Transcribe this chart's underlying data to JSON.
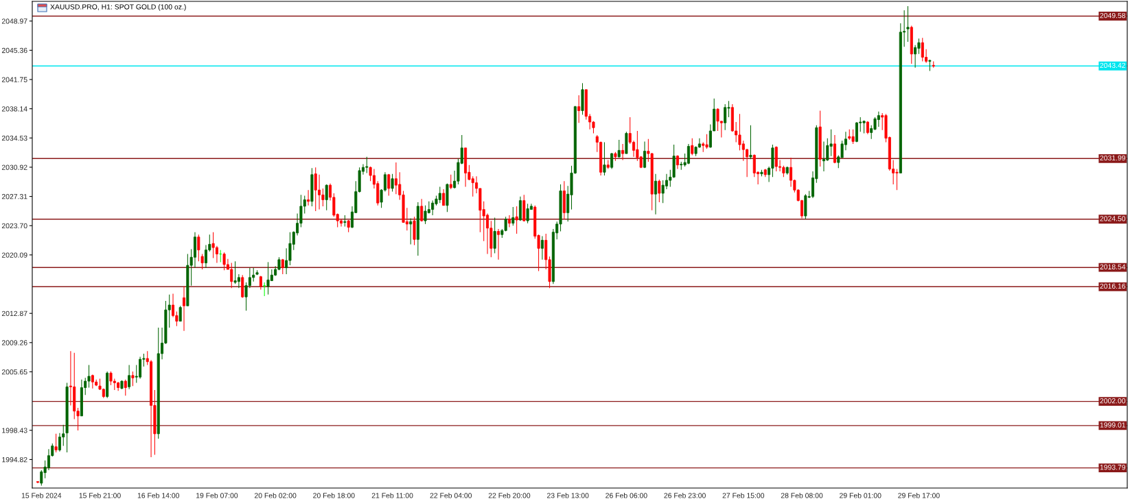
{
  "chart_data": {
    "type": "candlestick",
    "title": "XAUUSD.PRO, H1: SPOT GOLD (100 oz.)",
    "categories": [
      null,
      "15 Feb 2024",
      null,
      null,
      null,
      null,
      null,
      null,
      null,
      null,
      null,
      null,
      null,
      null,
      null,
      null,
      null,
      "15 Feb 21:00",
      null,
      null,
      null,
      null,
      null,
      null,
      null,
      null,
      null,
      null,
      null,
      null,
      null,
      null,
      null,
      "16 Feb 14:00",
      null,
      null,
      null,
      null,
      null,
      null,
      null,
      null,
      null,
      null,
      null,
      null,
      null,
      null,
      null,
      "19 Feb 07:00",
      null,
      null,
      null,
      null,
      null,
      null,
      null,
      null,
      null,
      null,
      null,
      null,
      null,
      null,
      null,
      "20 Feb 02:00",
      null,
      null,
      null,
      null,
      null,
      null,
      null,
      null,
      null,
      null,
      null,
      null,
      null,
      null,
      null,
      "20 Feb 18:00",
      null,
      null,
      null,
      null,
      null,
      null,
      null,
      null,
      null,
      null,
      null,
      null,
      null,
      null,
      null,
      "21 Feb 11:00",
      null,
      null,
      null,
      null,
      null,
      null,
      null,
      null,
      null,
      null,
      null,
      null,
      null,
      null,
      null,
      "22 Feb 04:00",
      null,
      null,
      null,
      null,
      null,
      null,
      null,
      null,
      null,
      null,
      null,
      null,
      null,
      null,
      null,
      "22 Feb 20:00",
      null,
      null,
      null,
      null,
      null,
      null,
      null,
      null,
      null,
      null,
      null,
      null,
      null,
      null,
      null,
      "23 Feb 13:00",
      null,
      null,
      null,
      null,
      null,
      null,
      null,
      null,
      null,
      null,
      null,
      null,
      null,
      null,
      null,
      "26 Feb 06:00",
      null,
      null,
      null,
      null,
      null,
      null,
      null,
      null,
      null,
      null,
      null,
      null,
      null,
      null,
      null,
      "26 Feb 23:00",
      null,
      null,
      null,
      null,
      null,
      null,
      null,
      null,
      null,
      null,
      null,
      null,
      null,
      null,
      null,
      "27 Feb 15:00",
      null,
      null,
      null,
      null,
      null,
      null,
      null,
      null,
      null,
      null,
      null,
      null,
      null,
      null,
      null,
      "28 Feb 08:00",
      null,
      null,
      null,
      null,
      null,
      null,
      null,
      null,
      null,
      null,
      null,
      null,
      null,
      null,
      null,
      "29 Feb 01:00",
      null,
      null,
      null,
      null,
      null,
      null,
      null,
      null,
      null,
      null,
      null,
      null,
      null,
      null,
      null,
      "29 Feb 17:00",
      null,
      null,
      null,
      null
    ],
    "ohlc": [
      [
        1992.1,
        1992.1,
        1991.9,
        1992.0
      ],
      [
        1991.9,
        1993.5,
        1991.6,
        1993.3
      ],
      [
        1993.2,
        1994.7,
        1992.5,
        1993.9
      ],
      [
        1993.8,
        1996.1,
        1993.5,
        1995.3
      ],
      [
        1995.3,
        1996.8,
        1995.2,
        1996.5
      ],
      [
        1996.4,
        1998.0,
        1995.7,
        1996.0
      ],
      [
        1996.0,
        1998.1,
        1995.8,
        1997.6
      ],
      [
        1997.6,
        1999.1,
        1996.5,
        1998.0
      ],
      [
        1998.1,
        2004.3,
        1995.7,
        2003.8
      ],
      [
        2003.9,
        2008.2,
        2001.5,
        2003.8
      ],
      [
        2003.8,
        2008.0,
        1999.8,
        2000.8
      ],
      [
        2000.8,
        2001.2,
        1998.4,
        2000.2
      ],
      [
        2000.2,
        2004.7,
        2000.2,
        2003.7
      ],
      [
        2003.7,
        2004.9,
        2002.8,
        2004.5
      ],
      [
        2004.5,
        2006.5,
        2003.7,
        2005.1
      ],
      [
        2005.2,
        2005.3,
        2003.6,
        2004.4
      ],
      [
        2004.4,
        2004.7,
        2003.9,
        2004.0
      ],
      [
        2003.9,
        2004.8,
        2003.4,
        2003.5
      ],
      [
        2003.5,
        2003.6,
        2002.4,
        2002.6
      ],
      [
        2002.6,
        2005.7,
        2002.4,
        2005.5
      ],
      [
        2005.5,
        2005.7,
        2004.0,
        2004.5
      ],
      [
        2004.5,
        2004.8,
        2003.4,
        2004.3
      ],
      [
        2004.3,
        2004.4,
        2003.3,
        2003.7
      ],
      [
        2003.6,
        2004.6,
        2003.5,
        2004.5
      ],
      [
        2004.5,
        2004.7,
        2002.7,
        2003.7
      ],
      [
        2003.8,
        2006.5,
        2003.5,
        2005.2
      ],
      [
        2005.2,
        2005.7,
        2003.9,
        2004.9
      ],
      [
        2005.0,
        2006.5,
        2004.3,
        2005.1
      ],
      [
        2005.0,
        2007.5,
        2004.8,
        2007.2
      ],
      [
        2007.2,
        2007.9,
        2006.3,
        2007.3
      ],
      [
        2007.3,
        2008.2,
        2006.5,
        2006.9
      ],
      [
        2006.9,
        2007.1,
        1995.1,
        2001.5
      ],
      [
        2001.5,
        2003.4,
        1995.4,
        1998.0
      ],
      [
        1998.0,
        2011.1,
        1997.4,
        2007.9
      ],
      [
        2007.9,
        2011.1,
        2007.2,
        2009.2
      ],
      [
        2009.2,
        2014.4,
        2009.1,
        2013.3
      ],
      [
        2013.3,
        2015.2,
        2011.1,
        2013.9
      ],
      [
        2013.9,
        2015.3,
        2012.4,
        2012.6
      ],
      [
        2012.6,
        2013.1,
        2011.3,
        2011.9
      ],
      [
        2011.9,
        2013.8,
        2011.9,
        2013.6
      ],
      [
        2014.8,
        2016.2,
        2010.7,
        2013.8
      ],
      [
        2013.8,
        2020.2,
        2013.8,
        2018.8
      ],
      [
        2018.8,
        2020.8,
        2016.3,
        2019.8
      ],
      [
        2019.8,
        2022.9,
        2018.5,
        2022.3
      ],
      [
        2022.3,
        2022.6,
        2019.3,
        2020.7
      ],
      [
        2019.9,
        2020.2,
        2018.3,
        2019.1
      ],
      [
        2019.1,
        2021.3,
        2018.5,
        2020.7
      ],
      [
        2020.7,
        2022.6,
        2020.5,
        2021.4
      ],
      [
        2021.5,
        2022.9,
        2019.7,
        2021.0
      ],
      [
        2021.0,
        2021.2,
        2019.1,
        2020.2
      ],
      [
        2020.2,
        2020.7,
        2019.2,
        2020.2
      ],
      [
        2020.2,
        2020.4,
        2018.2,
        2018.9
      ],
      [
        2018.9,
        2019.6,
        2018.3,
        2018.3
      ],
      [
        2018.3,
        2019.1,
        2016.0,
        2016.8
      ],
      [
        2016.7,
        2019.3,
        2016.5,
        2016.9
      ],
      [
        2016.8,
        2017.7,
        2016.0,
        2017.3
      ],
      [
        2017.3,
        2017.6,
        2014.8,
        2014.9
      ],
      [
        2014.9,
        2016.7,
        2013.2,
        2016.3
      ],
      [
        2016.3,
        2018.5,
        2016.0,
        2017.3
      ],
      [
        2017.3,
        2018.5,
        2016.8,
        2017.6
      ],
      [
        2017.7,
        2018.2,
        2017.6,
        2017.9
      ],
      [
        2017.4,
        2017.5,
        2015.8,
        2016.2
      ],
      [
        2016.3,
        2016.7,
        2015.0,
        2016.3
      ],
      [
        2016.2,
        2019.2,
        2015.2,
        2017.0
      ],
      [
        2016.9,
        2018.3,
        2016.9,
        2017.6
      ],
      [
        2017.6,
        2018.7,
        2017.5,
        2018.3
      ],
      [
        2018.3,
        2019.8,
        2018.2,
        2019.5
      ],
      [
        2019.5,
        2019.6,
        2017.7,
        2018.5
      ],
      [
        2018.5,
        2020.9,
        2017.7,
        2019.4
      ],
      [
        2019.4,
        2022.9,
        2018.8,
        2021.5
      ],
      [
        2021.4,
        2023.0,
        2020.7,
        2022.9
      ],
      [
        2022.8,
        2025.2,
        2022.5,
        2024.0
      ],
      [
        2024.0,
        2027.5,
        2023.5,
        2026.1
      ],
      [
        2026.1,
        2027.4,
        2025.2,
        2026.9
      ],
      [
        2026.9,
        2028.1,
        2026.2,
        2026.7
      ],
      [
        2026.7,
        2030.8,
        2026.1,
        2030.0
      ],
      [
        2030.1,
        2030.9,
        2025.5,
        2028.1
      ],
      [
        2028.1,
        2030.0,
        2025.7,
        2027.5
      ],
      [
        2027.5,
        2028.3,
        2026.1,
        2026.9
      ],
      [
        2026.9,
        2028.8,
        2025.6,
        2028.7
      ],
      [
        2028.7,
        2028.9,
        2026.8,
        2027.2
      ],
      [
        2027.2,
        2027.7,
        2024.8,
        2025.0
      ],
      [
        2025.1,
        2025.2,
        2023.5,
        2024.3
      ],
      [
        2024.3,
        2024.5,
        2023.6,
        2024.0
      ],
      [
        2024.1,
        2025.0,
        2023.6,
        2024.2
      ],
      [
        2024.3,
        2024.4,
        2022.9,
        2023.5
      ],
      [
        2023.5,
        2026.1,
        2023.4,
        2025.4
      ],
      [
        2025.3,
        2029.2,
        2025.3,
        2027.9
      ],
      [
        2027.9,
        2030.9,
        2027.8,
        2030.5
      ],
      [
        2030.4,
        2031.3,
        2030.0,
        2030.9
      ],
      [
        2030.9,
        2032.2,
        2030.2,
        2031.0
      ],
      [
        2030.9,
        2031.0,
        2029.2,
        2029.9
      ],
      [
        2029.9,
        2030.7,
        2028.3,
        2028.8
      ],
      [
        2028.9,
        2029.2,
        2026.2,
        2026.5
      ],
      [
        2026.6,
        2028.2,
        2025.9,
        2028.1
      ],
      [
        2028.1,
        2030.3,
        2027.9,
        2030.0
      ],
      [
        2030.0,
        2030.1,
        2027.4,
        2028.3
      ],
      [
        2028.3,
        2030.1,
        2027.9,
        2029.5
      ],
      [
        2029.5,
        2031.5,
        2027.6,
        2028.7
      ],
      [
        2028.8,
        2030.3,
        2026.9,
        2027.5
      ],
      [
        2027.5,
        2028.0,
        2024.1,
        2024.1
      ],
      [
        2024.2,
        2025.9,
        2023.1,
        2023.9
      ],
      [
        2023.9,
        2024.6,
        2021.4,
        2024.2
      ],
      [
        2024.3,
        2024.8,
        2021.3,
        2022.0
      ],
      [
        2022.0,
        2026.6,
        2020.0,
        2026.1
      ],
      [
        2026.1,
        2027.0,
        2024.2,
        2024.3
      ],
      [
        2024.3,
        2026.2,
        2023.9,
        2025.5
      ],
      [
        2025.3,
        2026.7,
        2025.2,
        2025.7
      ],
      [
        2025.7,
        2026.8,
        2025.0,
        2026.5
      ],
      [
        2026.4,
        2027.4,
        2026.2,
        2027.0
      ],
      [
        2026.9,
        2028.5,
        2026.5,
        2027.7
      ],
      [
        2027.7,
        2028.2,
        2026.2,
        2026.2
      ],
      [
        2026.2,
        2028.9,
        2025.4,
        2028.8
      ],
      [
        2028.8,
        2030.0,
        2028.2,
        2028.4
      ],
      [
        2028.4,
        2030.5,
        2028.3,
        2029.2
      ],
      [
        2029.2,
        2032.0,
        2028.8,
        2031.5
      ],
      [
        2031.4,
        2034.9,
        2031.3,
        2033.3
      ],
      [
        2033.3,
        2033.3,
        2028.5,
        2030.2
      ],
      [
        2030.3,
        2031.2,
        2029.3,
        2029.4
      ],
      [
        2029.5,
        2029.8,
        2027.3,
        2029.0
      ],
      [
        2029.0,
        2029.8,
        2027.7,
        2028.3
      ],
      [
        2028.3,
        2028.3,
        2022.9,
        2025.6
      ],
      [
        2025.7,
        2026.7,
        2021.8,
        2024.9
      ],
      [
        2025.0,
        2025.2,
        2020.2,
        2023.4
      ],
      [
        2023.4,
        2024.3,
        2019.8,
        2020.9
      ],
      [
        2020.9,
        2024.7,
        2020.3,
        2023.0
      ],
      [
        2023.0,
        2023.3,
        2019.5,
        2022.6
      ],
      [
        2022.6,
        2023.3,
        2022.2,
        2023.1
      ],
      [
        2023.1,
        2024.8,
        2023.0,
        2024.5
      ],
      [
        2024.5,
        2025.0,
        2023.5,
        2024.0
      ],
      [
        2024.0,
        2026.0,
        2023.7,
        2024.7
      ],
      [
        2024.8,
        2026.1,
        2022.7,
        2024.4
      ],
      [
        2024.4,
        2027.3,
        2024.3,
        2026.8
      ],
      [
        2026.8,
        2027.5,
        2024.2,
        2024.3
      ],
      [
        2024.3,
        2026.4,
        2024.0,
        2025.8
      ],
      [
        2025.7,
        2026.4,
        2025.7,
        2026.1
      ],
      [
        2026.0,
        2026.2,
        2022.1,
        2022.4
      ],
      [
        2022.5,
        2022.6,
        2018.1,
        2020.9
      ],
      [
        2020.9,
        2022.4,
        2019.5,
        2021.9
      ],
      [
        2021.9,
        2022.7,
        2018.3,
        2019.5
      ],
      [
        2019.5,
        2019.9,
        2016.0,
        2016.8
      ],
      [
        2016.8,
        2023.3,
        2016.5,
        2022.9
      ],
      [
        2022.8,
        2024.2,
        2022.0,
        2023.9
      ],
      [
        2023.9,
        2028.8,
        2023.0,
        2028.0
      ],
      [
        2028.0,
        2029.2,
        2024.5,
        2025.3
      ],
      [
        2025.3,
        2028.6,
        2024.2,
        2027.6
      ],
      [
        2027.5,
        2031.1,
        2025.7,
        2030.2
      ],
      [
        2030.2,
        2038.5,
        2030.1,
        2038.4
      ],
      [
        2038.4,
        2039.8,
        2036.4,
        2037.9
      ],
      [
        2037.9,
        2041.3,
        2037.4,
        2040.5
      ],
      [
        2040.5,
        2040.5,
        2036.8,
        2037.2
      ],
      [
        2037.2,
        2037.5,
        2035.6,
        2036.5
      ],
      [
        2036.5,
        2036.6,
        2035.1,
        2035.8
      ],
      [
        2034.7,
        2034.9,
        2032.8,
        2034.0
      ],
      [
        2034.0,
        2034.1,
        2029.9,
        2030.3
      ],
      [
        2030.3,
        2034.0,
        2029.9,
        2031.2
      ],
      [
        2031.2,
        2031.8,
        2030.7,
        2030.9
      ],
      [
        2030.9,
        2032.7,
        2030.7,
        2032.6
      ],
      [
        2032.6,
        2032.8,
        2031.7,
        2032.2
      ],
      [
        2032.2,
        2034.3,
        2032.1,
        2033.0
      ],
      [
        2033.0,
        2033.8,
        2031.8,
        2032.6
      ],
      [
        2032.6,
        2035.3,
        2032.6,
        2035.1
      ],
      [
        2035.1,
        2037.1,
        2033.8,
        2034.0
      ],
      [
        2034.0,
        2034.2,
        2032.2,
        2033.0
      ],
      [
        2033.1,
        2035.4,
        2031.7,
        2032.1
      ],
      [
        2032.2,
        2032.3,
        2030.8,
        2030.9
      ],
      [
        2030.9,
        2034.1,
        2030.8,
        2032.9
      ],
      [
        2032.9,
        2034.4,
        2031.6,
        2032.6
      ],
      [
        2032.6,
        2032.7,
        2025.6,
        2027.6
      ],
      [
        2027.6,
        2030.1,
        2025.1,
        2029.2
      ],
      [
        2029.2,
        2029.4,
        2026.6,
        2027.7
      ],
      [
        2027.7,
        2029.3,
        2026.5,
        2028.7
      ],
      [
        2028.6,
        2030.1,
        2028.2,
        2029.3
      ],
      [
        2029.3,
        2030.6,
        2028.5,
        2029.7
      ],
      [
        2029.7,
        2033.7,
        2029.6,
        2032.3
      ],
      [
        2032.3,
        2032.4,
        2030.7,
        2031.2
      ],
      [
        2031.2,
        2031.6,
        2030.6,
        2031.3
      ],
      [
        2031.2,
        2032.6,
        2031.0,
        2031.5
      ],
      [
        2031.4,
        2033.8,
        2031.3,
        2033.5
      ],
      [
        2033.6,
        2034.5,
        2032.4,
        2032.6
      ],
      [
        2032.6,
        2033.5,
        2032.3,
        2033.4
      ],
      [
        2033.4,
        2034.5,
        2033.3,
        2033.8
      ],
      [
        2033.8,
        2034.0,
        2032.8,
        2033.6
      ],
      [
        2033.7,
        2035.0,
        2033.2,
        2033.4
      ],
      [
        2033.4,
        2036.2,
        2033.3,
        2035.4
      ],
      [
        2035.4,
        2039.4,
        2035.4,
        2038.1
      ],
      [
        2038.1,
        2038.2,
        2035.4,
        2036.6
      ],
      [
        2036.6,
        2036.6,
        2034.6,
        2036.4
      ],
      [
        2036.4,
        2038.7,
        2035.5,
        2038.3
      ],
      [
        2038.2,
        2039.1,
        2037.1,
        2038.3
      ],
      [
        2038.3,
        2038.7,
        2035.3,
        2035.4
      ],
      [
        2035.4,
        2036.5,
        2034.0,
        2034.9
      ],
      [
        2034.9,
        2037.5,
        2033.0,
        2033.7
      ],
      [
        2033.8,
        2034.2,
        2031.7,
        2033.1
      ],
      [
        2033.1,
        2033.2,
        2029.7,
        2032.2
      ],
      [
        2032.2,
        2036.1,
        2031.9,
        2032.4
      ],
      [
        2032.4,
        2032.5,
        2029.7,
        2030.2
      ],
      [
        2030.3,
        2030.4,
        2028.8,
        2030.1
      ],
      [
        2030.1,
        2030.6,
        2029.8,
        2030.3
      ],
      [
        2030.6,
        2030.7,
        2029.7,
        2030.0
      ],
      [
        2030.0,
        2031.0,
        2029.1,
        2030.8
      ],
      [
        2030.8,
        2033.7,
        2029.7,
        2033.3
      ],
      [
        2033.4,
        2033.5,
        2030.4,
        2031.0
      ],
      [
        2031.0,
        2031.8,
        2030.4,
        2030.9
      ],
      [
        2030.9,
        2031.1,
        2029.7,
        2030.2
      ],
      [
        2030.2,
        2031.0,
        2030.0,
        2030.9
      ],
      [
        2030.9,
        2032.1,
        2028.5,
        2029.3
      ],
      [
        2029.3,
        2029.4,
        2027.8,
        2028.1
      ],
      [
        2028.1,
        2028.2,
        2026.7,
        2026.8
      ],
      [
        2026.8,
        2026.9,
        2024.6,
        2024.9
      ],
      [
        2024.9,
        2027.6,
        2024.5,
        2027.4
      ],
      [
        2027.2,
        2028.0,
        2027.1,
        2027.3
      ],
      [
        2027.3,
        2030.4,
        2027.1,
        2029.6
      ],
      [
        2029.5,
        2036.1,
        2029.0,
        2035.8
      ],
      [
        2035.9,
        2037.9,
        2031.0,
        2031.9
      ],
      [
        2031.7,
        2034.1,
        2030.4,
        2031.9
      ],
      [
        2031.8,
        2034.5,
        2031.7,
        2033.6
      ],
      [
        2033.5,
        2035.6,
        2032.3,
        2033.8
      ],
      [
        2033.8,
        2034.9,
        2031.4,
        2031.5
      ],
      [
        2031.5,
        2032.4,
        2030.8,
        2032.2
      ],
      [
        2032.1,
        2034.2,
        2032.1,
        2033.8
      ],
      [
        2033.7,
        2035.3,
        2033.0,
        2034.4
      ],
      [
        2034.7,
        2035.6,
        2034.3,
        2034.5
      ],
      [
        2034.7,
        2035.6,
        2033.8,
        2034.1
      ],
      [
        2034.1,
        2036.5,
        2034.0,
        2036.4
      ],
      [
        2036.4,
        2037.1,
        2035.3,
        2036.5
      ],
      [
        2036.4,
        2036.7,
        2035.1,
        2036.6
      ],
      [
        2036.5,
        2036.6,
        2035.0,
        2035.2
      ],
      [
        2035.2,
        2036.1,
        2034.4,
        2035.7
      ],
      [
        2035.6,
        2037.1,
        2035.5,
        2036.9
      ],
      [
        2036.8,
        2037.8,
        2035.9,
        2037.3
      ],
      [
        2037.3,
        2037.6,
        2035.5,
        2037.1
      ],
      [
        2037.3,
        2037.5,
        2034.0,
        2034.5
      ],
      [
        2034.6,
        2034.7,
        2030.5,
        2030.7
      ],
      [
        2030.7,
        2031.8,
        2028.8,
        2030.2
      ],
      [
        2030.3,
        2030.7,
        2028.1,
        2030.2
      ],
      [
        2030.2,
        2048.7,
        2030.2,
        2047.6
      ],
      [
        2047.6,
        2050.3,
        2045.8,
        2047.7
      ],
      [
        2048.0,
        2050.8,
        2046.4,
        2048.2
      ],
      [
        2048.2,
        2048.4,
        2043.7,
        2044.9
      ],
      [
        2044.9,
        2046.0,
        2043.2,
        2045.7
      ],
      [
        2045.6,
        2046.8,
        2044.9,
        2046.3
      ],
      [
        2046.3,
        2046.9,
        2044.0,
        2044.5
      ],
      [
        2044.5,
        2045.5,
        2043.8,
        2044.0
      ],
      [
        2044.0,
        2044.2,
        2042.8,
        2044.1
      ],
      [
        2043.5,
        2044.0,
        2043.2,
        2043.4
      ]
    ],
    "colors": [
      "#ff0000",
      "#006400",
      "#006400",
      "#006400",
      "#006400",
      "#ff0000",
      "#006400",
      "#006400",
      "#006400",
      "#ff0000",
      "#ff0000",
      "#ff0000",
      "#006400",
      "#006400",
      "#006400",
      "#ff0000",
      "#ff0000",
      "#ff0000",
      "#ff0000",
      "#006400",
      "#ff0000",
      "#ff0000",
      "#ff0000",
      "#006400",
      "#ff0000",
      "#006400",
      "#ff0000",
      "#006400",
      "#006400",
      "#006400",
      "#ff0000",
      "#ff0000",
      "#ff0000",
      "#006400",
      "#006400",
      "#006400",
      "#006400",
      "#ff0000",
      "#ff0000",
      "#006400",
      "#ff0000",
      "#006400",
      "#006400",
      "#006400",
      "#ff0000",
      "#ff0000",
      "#006400",
      "#006400",
      "#ff0000",
      "#ff0000",
      "#00ff00",
      "#ff0000",
      "#ff0000",
      "#ff0000",
      "#006400",
      "#006400",
      "#ff0000",
      "#006400",
      "#006400",
      "#006400",
      "#006400",
      "#ff0000",
      "#00ff00",
      "#006400",
      "#006400",
      "#006400",
      "#006400",
      "#ff0000",
      "#006400",
      "#006400",
      "#006400",
      "#006400",
      "#006400",
      "#006400",
      "#ff0000",
      "#006400",
      "#ff0000",
      "#ff0000",
      "#ff0000",
      "#006400",
      "#ff0000",
      "#ff0000",
      "#ff0000",
      "#ff0000",
      "#006400",
      "#ff0000",
      "#006400",
      "#006400",
      "#006400",
      "#006400",
      "#006400",
      "#ff0000",
      "#ff0000",
      "#ff0000",
      "#006400",
      "#006400",
      "#ff0000",
      "#006400",
      "#ff0000",
      "#ff0000",
      "#ff0000",
      "#ff0000",
      "#006400",
      "#ff0000",
      "#006400",
      "#ff0000",
      "#006400",
      "#006400",
      "#006400",
      "#006400",
      "#006400",
      "#ff0000",
      "#006400",
      "#ff0000",
      "#006400",
      "#006400",
      "#006400",
      "#ff0000",
      "#ff0000",
      "#ff0000",
      "#ff0000",
      "#ff0000",
      "#ff0000",
      "#ff0000",
      "#ff0000",
      "#006400",
      "#ff0000",
      "#006400",
      "#006400",
      "#ff0000",
      "#006400",
      "#ff0000",
      "#006400",
      "#ff0000",
      "#006400",
      "#006400",
      "#ff0000",
      "#ff0000",
      "#006400",
      "#ff0000",
      "#ff0000",
      "#006400",
      "#006400",
      "#006400",
      "#ff0000",
      "#006400",
      "#006400",
      "#006400",
      "#ff0000",
      "#006400",
      "#ff0000",
      "#ff0000",
      "#ff0000",
      "#ff0000",
      "#ff0000",
      "#006400",
      "#ff0000",
      "#006400",
      "#ff0000",
      "#006400",
      "#ff0000",
      "#006400",
      "#ff0000",
      "#ff0000",
      "#ff0000",
      "#ff0000",
      "#006400",
      "#ff0000",
      "#ff0000",
      "#006400",
      "#ff0000",
      "#006400",
      "#006400",
      "#006400",
      "#006400",
      "#ff0000",
      "#006400",
      "#006400",
      "#006400",
      "#ff0000",
      "#006400",
      "#006400",
      "#ff0000",
      "#ff0000",
      "#006400",
      "#006400",
      "#ff0000",
      "#ff0000",
      "#006400",
      "#006400",
      "#ff0000",
      "#ff0000",
      "#ff0000",
      "#ff0000",
      "#ff0000",
      "#006400",
      "#ff0000",
      "#ff0000",
      "#006400",
      "#ff0000",
      "#006400",
      "#006400",
      "#ff0000",
      "#ff0000",
      "#ff0000",
      "#006400",
      "#ff0000",
      "#ff0000",
      "#ff0000",
      "#ff0000",
      "#006400",
      "#006400",
      "#006400",
      "#006400",
      "#ff0000",
      "#006400",
      "#006400",
      "#006400",
      "#ff0000",
      "#006400",
      "#006400",
      "#006400",
      "#ff0000",
      "#ff0000",
      "#006400",
      "#006400",
      "#006400",
      "#ff0000",
      "#006400",
      "#006400",
      "#006400",
      "#ff0000",
      "#ff0000",
      "#ff0000",
      "#ff0000",
      "#ff0000",
      "#006400",
      "#006400",
      "#006400",
      "#ff0000",
      "#006400",
      "#006400",
      "#ff0000",
      "#ff0000",
      "#006400",
      "#ff0000"
    ],
    "ylim": [
      1991.3,
      2051.4
    ],
    "yticks": [
      {
        "value": 1994.82,
        "label": "1994.82"
      },
      {
        "value": 1998.43,
        "label": "1998.43"
      },
      {
        "value": 2005.65,
        "label": "2005.65"
      },
      {
        "value": 2009.26,
        "label": "2009.26"
      },
      {
        "value": 2012.87,
        "label": "2012.87"
      },
      {
        "value": 2020.09,
        "label": "2020.09"
      },
      {
        "value": 2023.7,
        "label": "2023.70"
      },
      {
        "value": 2027.31,
        "label": "2027.31"
      },
      {
        "value": 2030.92,
        "label": "2030.92"
      },
      {
        "value": 2034.53,
        "label": "2034.53"
      },
      {
        "value": 2038.14,
        "label": "2038.14"
      },
      {
        "value": 2041.75,
        "label": "2041.75"
      },
      {
        "value": 2045.36,
        "label": "2045.36"
      },
      {
        "value": 2048.97,
        "label": "2048.97"
      }
    ],
    "ref_lines": [
      {
        "axis": "y",
        "value": 2049.58,
        "label": "2049.58",
        "color": "#8b1a1a"
      },
      {
        "axis": "y",
        "value": 2043.42,
        "label": "2043.42",
        "color": "#00e5ee"
      },
      {
        "axis": "y",
        "value": 2031.99,
        "label": "2031.99",
        "color": "#8b1a1a"
      },
      {
        "axis": "y",
        "value": 2024.5,
        "label": "2024.50",
        "color": "#8b1a1a"
      },
      {
        "axis": "y",
        "value": 2018.54,
        "label": "2018.54",
        "color": "#8b1a1a"
      },
      {
        "axis": "y",
        "value": 2016.16,
        "label": "2016.16",
        "color": "#8b1a1a"
      },
      {
        "axis": "y",
        "value": 2002.0,
        "label": "2002.00",
        "color": "#8b1a1a"
      },
      {
        "axis": "y",
        "value": 1999.01,
        "label": "1999.01",
        "color": "#8b1a1a"
      },
      {
        "axis": "y",
        "value": 1993.79,
        "label": "1993.79",
        "color": "#8b1a1a"
      }
    ]
  }
}
